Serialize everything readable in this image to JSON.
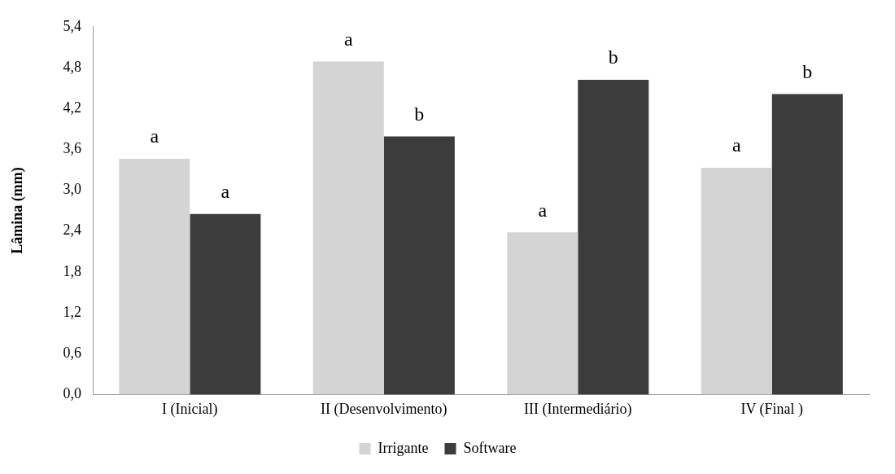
{
  "chart_data": {
    "type": "bar",
    "ylabel": "Lâmina (mm)",
    "categories": [
      "I (Inicial)",
      "II (Desenvolvimento)",
      "III (Intermediário)",
      "IV (Final )"
    ],
    "series": [
      {
        "name": "Irrigante",
        "color": "#d4d4d4",
        "values": [
          3.46,
          4.89,
          2.38,
          3.33
        ],
        "value_labels": [
          "a",
          "a",
          "a",
          "a"
        ]
      },
      {
        "name": "Software",
        "color": "#3c3c3c",
        "values": [
          2.65,
          3.79,
          4.62,
          4.41
        ],
        "value_labels": [
          "a",
          "b",
          "b",
          "b"
        ]
      }
    ],
    "ylim": [
      0,
      5.4
    ],
    "yticks": [
      {
        "value": 0,
        "label": "0,0"
      },
      {
        "value": 0.6,
        "label": "0,6"
      },
      {
        "value": 1.2,
        "label": "1,2"
      },
      {
        "value": 1.8,
        "label": "1,8"
      },
      {
        "value": 2.4,
        "label": "2,4"
      },
      {
        "value": 3,
        "label": "3,0"
      },
      {
        "value": 3.6,
        "label": "3,6"
      },
      {
        "value": 4.2,
        "label": "4,2"
      },
      {
        "value": 4.8,
        "label": "4,8"
      },
      {
        "value": 5.4,
        "label": "5,4"
      }
    ],
    "grid": false,
    "legend": "bottom"
  }
}
